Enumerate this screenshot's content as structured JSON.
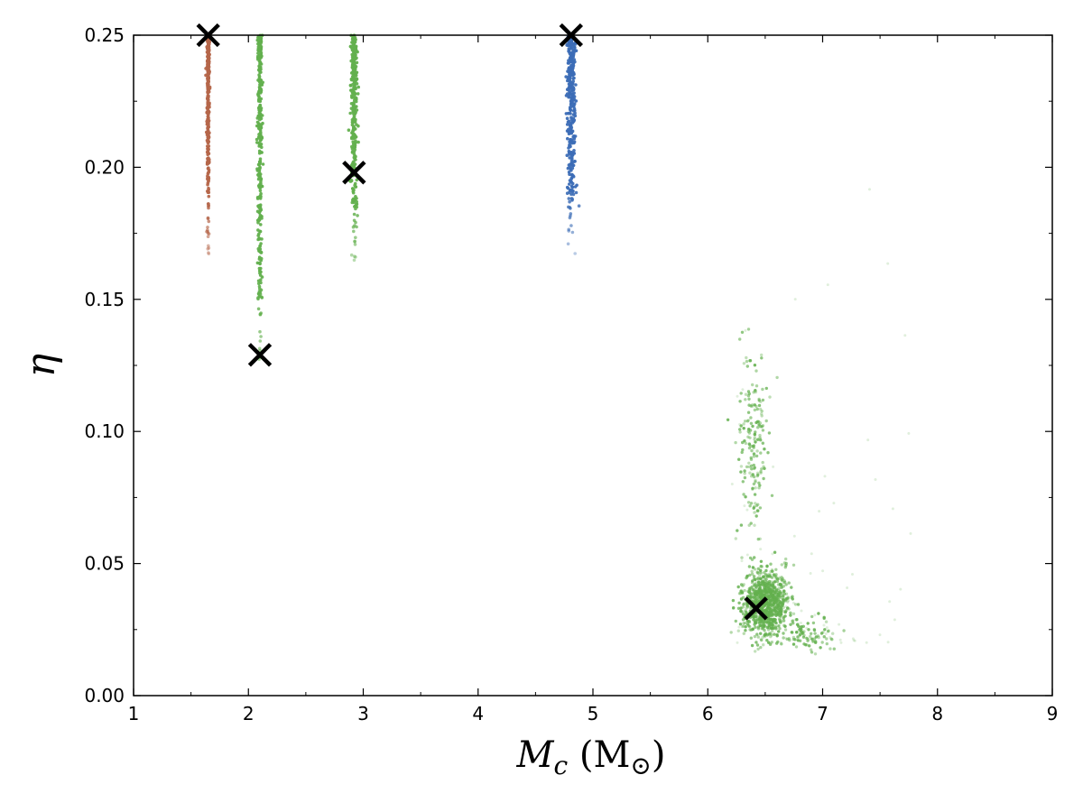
{
  "chart_data": {
    "type": "scatter",
    "title": "",
    "xlabel": {
      "main": "M",
      "sub": "c",
      "unit": "(M",
      "unit_close": ")",
      "unit_symbol": "⊙"
    },
    "ylabel": "η",
    "xlim": [
      1,
      9
    ],
    "ylim": [
      0,
      0.25
    ],
    "x_ticks": [
      1,
      2,
      3,
      4,
      5,
      6,
      7,
      8,
      9
    ],
    "x_tick_labels": [
      "1",
      "2",
      "3",
      "4",
      "5",
      "6",
      "7",
      "8",
      "9"
    ],
    "y_ticks": [
      0,
      0.05,
      0.1,
      0.15,
      0.2,
      0.25
    ],
    "y_tick_labels": [
      "0.00",
      "0.05",
      "0.10",
      "0.15",
      "0.20",
      "0.25"
    ],
    "grid": false,
    "legend": "none",
    "series": [
      {
        "color": "#b5664a",
        "distribution": {
          "x": 1.65,
          "x_spread": 0.005,
          "y_range": [
            0.16,
            0.25
          ]
        }
      },
      {
        "color": "#63b04e",
        "distribution": {
          "x": 2.1,
          "x_spread": 0.01,
          "y_range": [
            0.111,
            0.25
          ]
        }
      },
      {
        "color": "#63b04e",
        "distribution": {
          "x": 2.92,
          "x_spread": 0.012,
          "y_range": [
            0.156,
            0.25
          ]
        }
      },
      {
        "color": "#3c6db6",
        "distribution": {
          "x": 4.81,
          "x_spread": 0.02,
          "y_range": [
            0.163,
            0.25
          ]
        }
      },
      {
        "color": "#63b04e",
        "distribution": {
          "blobs": [
            {
              "x": 6.5,
              "y": 0.035,
              "sx": 0.1,
              "sy": 0.006
            },
            {
              "x": 6.4,
              "y": 0.095,
              "sx": 0.07,
              "sy": 0.02
            },
            {
              "x": 6.85,
              "y": 0.023,
              "sx": 0.12,
              "sy": 0.003
            }
          ]
        }
      }
    ],
    "true_values": [
      {
        "x": 1.65,
        "y": 0.25
      },
      {
        "x": 2.1,
        "y": 0.129
      },
      {
        "x": 2.92,
        "y": 0.198
      },
      {
        "x": 4.81,
        "y": 0.25
      },
      {
        "x": 6.42,
        "y": 0.033
      }
    ],
    "marker_color": "#000000"
  }
}
